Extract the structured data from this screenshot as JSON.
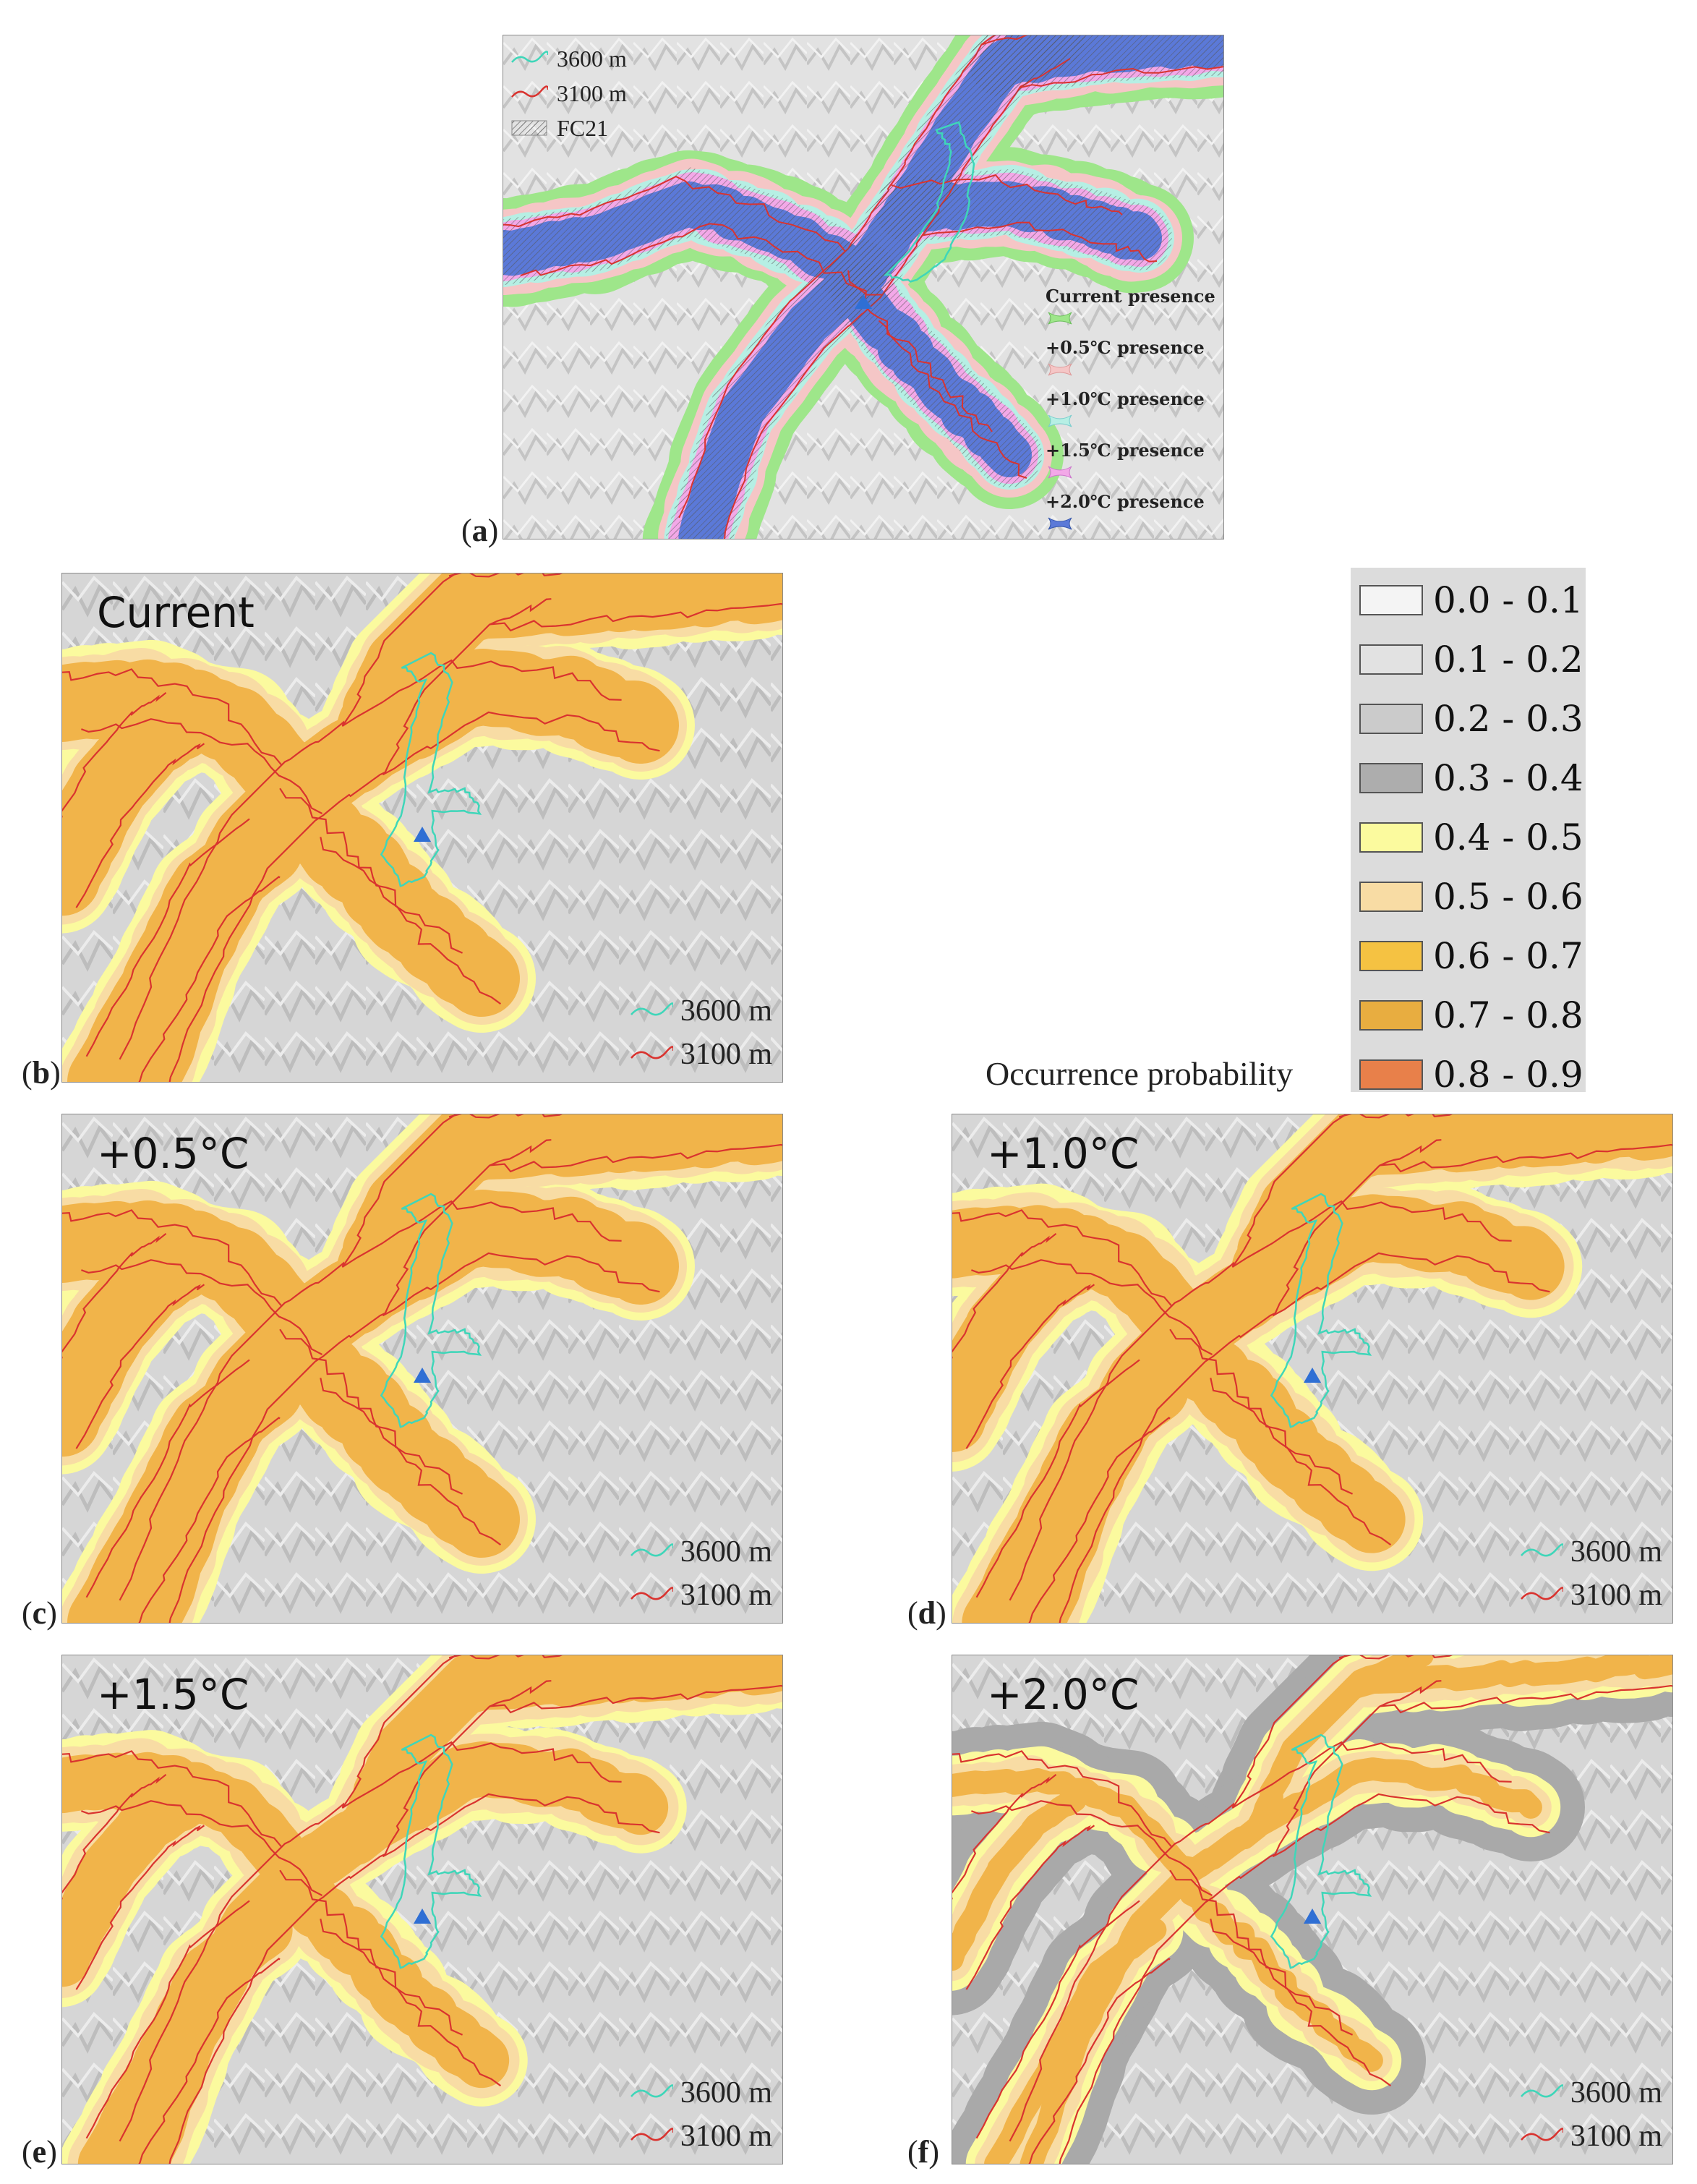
{
  "panel_a": {
    "label": "a",
    "legend": [
      {
        "name": "3600 m",
        "color": "#3fd6b9"
      },
      {
        "name": "3100 m",
        "color": "#d9332f"
      },
      {
        "name": "FC21",
        "pattern": "hatch"
      }
    ],
    "presence_legend": [
      {
        "label": "Current presence",
        "color": "#9ee68a"
      },
      {
        "label": "+0.5℃ presence",
        "color": "#f5c6c6"
      },
      {
        "label": "+1.0℃ presence",
        "color": "#b6efe4"
      },
      {
        "label": "+1.5℃ presence",
        "color": "#f3a8e8"
      },
      {
        "label": "+2.0℃ presence",
        "color": "#5b79d8"
      }
    ]
  },
  "panels": [
    {
      "label": "b",
      "title": "Current"
    },
    {
      "label": "c",
      "title": "+0.5°C"
    },
    {
      "label": "d",
      "title": "+1.0°C"
    },
    {
      "label": "e",
      "title": "+1.5°C"
    },
    {
      "label": "f",
      "title": "+2.0°C"
    }
  ],
  "contour_legend": {
    "line_3600": "3600 m",
    "line_3100": "3100 m"
  },
  "probability_legend": {
    "title": "Occurrence probability",
    "classes": [
      {
        "label": "0.0 - 0.1",
        "color": "#f4f4f4"
      },
      {
        "label": "0.1 - 0.2",
        "color": "#e2e2e2"
      },
      {
        "label": "0.2 - 0.3",
        "color": "#cbcbcb"
      },
      {
        "label": "0.3 - 0.4",
        "color": "#adadad"
      },
      {
        "label": "0.4 - 0.5",
        "color": "#fbfa9e"
      },
      {
        "label": "0.5 - 0.6",
        "color": "#f8dca4"
      },
      {
        "label": "0.6 - 0.7",
        "color": "#f5c242"
      },
      {
        "label": "0.7 - 0.8",
        "color": "#e8ad40"
      },
      {
        "label": "0.8 - 0.9",
        "color": "#e8804a"
      }
    ]
  },
  "colors": {
    "relief": "#d6d6d6",
    "ring_yellow": "#fbfa9e",
    "ring_peach": "#f8dca4",
    "core_orange": "#f1b44a",
    "contour_3600": "#3fd6b9",
    "contour_3100": "#d9332f",
    "marker": "#2f6fd4"
  },
  "panel_areas": {
    "b": {
      "yellow": 1.0,
      "peach": 1.0,
      "orange": 1.0,
      "grey": 0.0
    },
    "c": {
      "yellow": 1.0,
      "peach": 1.0,
      "orange": 1.0,
      "grey": 0.0
    },
    "d": {
      "yellow": 0.95,
      "peach": 0.93,
      "orange": 0.88,
      "grey": 0.0
    },
    "e": {
      "yellow": 0.85,
      "peach": 0.82,
      "orange": 0.72,
      "grey": 0.0
    },
    "f": {
      "yellow": 0.55,
      "peach": 0.45,
      "orange": 0.3,
      "grey": 1.0
    }
  }
}
